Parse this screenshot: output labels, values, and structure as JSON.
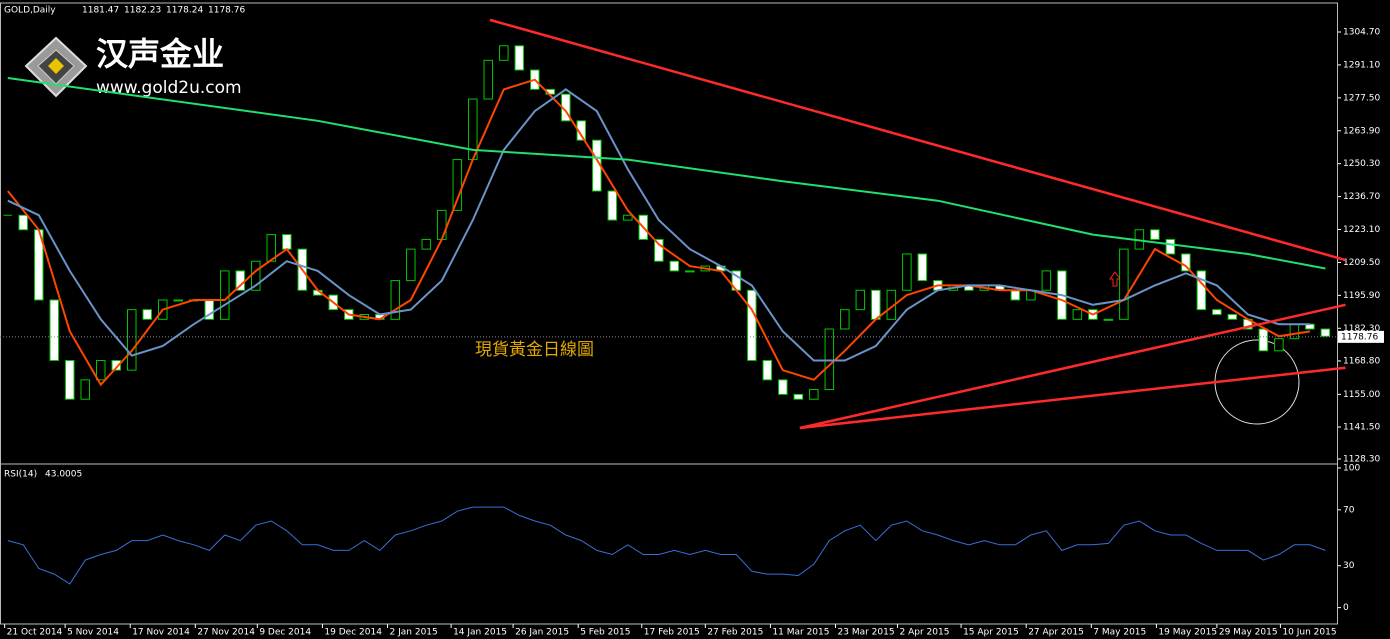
{
  "chart_data": [
    {
      "type": "candlestick",
      "title": "GOLD,Daily",
      "ohlc": [
        1181.47,
        1182.23,
        1178.24,
        1178.76
      ],
      "watermark": {
        "brand": "汉声金业",
        "site": "www.gold2u.com"
      },
      "annotation": "現貨黃金日線圖",
      "up_color": "#000000",
      "down_color": "#ffffff",
      "outline_color": "#00c800",
      "values": [
        1229,
        1223,
        1194,
        1169,
        1153,
        1161,
        1169,
        1165,
        1190,
        1186,
        1194,
        1194,
        1194,
        1186,
        1206,
        1198,
        1210,
        1221,
        1215,
        1198,
        1196,
        1190,
        1186,
        1188,
        1186,
        1202,
        1215,
        1219,
        1231,
        1252,
        1277,
        1293,
        1299,
        1289,
        1281,
        1279,
        1268,
        1260,
        1239,
        1227,
        1229,
        1219,
        1210,
        1206,
        1206,
        1208,
        1206,
        1198,
        1169,
        1161,
        1155,
        1153,
        1157,
        1182,
        1190,
        1198,
        1186,
        1198,
        1213,
        1202,
        1198,
        1200,
        1198,
        1200,
        1198,
        1194,
        1198,
        1206,
        1186,
        1190,
        1186,
        1186,
        1215,
        1223,
        1219,
        1213,
        1206,
        1190,
        1188,
        1186,
        1182,
        1173,
        1178,
        1184,
        1182,
        1179
      ],
      "series": [
        {
          "color": "#ff4500",
          "x": [
            0,
            2,
            4,
            6,
            8,
            10,
            12,
            14,
            16,
            18,
            20,
            22,
            24,
            26,
            28,
            30,
            32,
            34,
            36,
            38,
            40,
            42,
            44,
            46,
            48,
            50,
            52,
            54,
            56,
            58,
            60,
            62,
            64,
            66,
            68,
            70,
            72,
            74,
            76,
            78,
            80,
            82,
            84
          ],
          "values": [
            1239,
            1223,
            1181,
            1159,
            1173,
            1190,
            1194,
            1194,
            1206,
            1215,
            1198,
            1188,
            1186,
            1194,
            1219,
            1252,
            1281,
            1285,
            1272,
            1252,
            1231,
            1217,
            1208,
            1206,
            1190,
            1165,
            1161,
            1173,
            1186,
            1196,
            1200,
            1200,
            1198,
            1198,
            1194,
            1188,
            1194,
            1215,
            1208,
            1194,
            1186,
            1179,
            1181
          ]
        },
        {
          "color": "#6a93c8",
          "x": [
            0,
            2,
            4,
            6,
            8,
            10,
            12,
            14,
            16,
            18,
            20,
            22,
            24,
            26,
            28,
            30,
            32,
            34,
            36,
            38,
            40,
            42,
            44,
            46,
            48,
            50,
            52,
            54,
            56,
            58,
            60,
            62,
            64,
            66,
            68,
            70,
            72,
            74,
            76,
            78,
            80,
            82,
            84
          ],
          "values": [
            1235,
            1229,
            1206,
            1186,
            1171,
            1175,
            1184,
            1192,
            1200,
            1210,
            1206,
            1196,
            1188,
            1190,
            1202,
            1227,
            1256,
            1272,
            1281,
            1272,
            1248,
            1227,
            1215,
            1208,
            1200,
            1181,
            1169,
            1169,
            1175,
            1190,
            1198,
            1200,
            1200,
            1198,
            1196,
            1192,
            1194,
            1200,
            1205,
            1200,
            1188,
            1184,
            1184
          ]
        },
        {
          "color": "#20e070",
          "x": [
            0,
            20,
            30,
            40,
            50,
            60,
            70,
            80,
            85
          ],
          "values": [
            1285.7,
            1268,
            1256,
            1252,
            1243,
            1235,
            1221,
            1213,
            1207
          ]
        }
      ],
      "trendlines": [
        {
          "color": "#ff2a2a",
          "x": [
            31.1,
            86.3
          ],
          "y": [
            1309.7,
            1210.5
          ]
        },
        {
          "color": "#ff2a2a",
          "x": [
            51.1,
            86.3
          ],
          "y": [
            1141.1,
            1192.0
          ]
        },
        {
          "color": "#ff2a2a",
          "x": [
            51.1,
            86.3
          ],
          "y": [
            1141.1,
            1166.0
          ]
        }
      ],
      "xlim": [
        -0.5,
        85.75
      ],
      "ylim": [
        1127.06,
        1315.85
      ],
      "yticks": [
        {
          "value": 1128.3,
          "label": "1128.30"
        },
        {
          "value": 1141.5,
          "label": "1141.50"
        },
        {
          "value": 1155,
          "label": "1155.00"
        },
        {
          "value": 1168.8,
          "label": "1168.80"
        },
        {
          "value": 1182.3,
          "label": "1182.30"
        },
        {
          "value": 1195.9,
          "label": "1195.90"
        },
        {
          "value": 1209.5,
          "label": "1209.50"
        },
        {
          "value": 1223.1,
          "label": "1223.10"
        },
        {
          "value": 1236.7,
          "label": "1236.70"
        },
        {
          "value": 1250.3,
          "label": "1250.30"
        },
        {
          "value": 1263.9,
          "label": "1263.90"
        },
        {
          "value": 1277.5,
          "label": "1277.50"
        },
        {
          "value": 1291.1,
          "label": "1291.10"
        },
        {
          "value": 1304.7,
          "label": "1304.70"
        }
      ]
    },
    {
      "type": "line",
      "title": "RSI(14)",
      "last": 43.0005,
      "color": "#3a6fd8",
      "values": [
        48,
        45,
        28,
        24,
        17,
        34,
        38,
        41,
        48,
        48,
        52,
        48,
        45,
        41,
        52,
        48,
        59,
        62,
        55,
        45,
        45,
        41,
        41,
        48,
        41,
        52,
        55,
        59,
        62,
        69,
        72,
        72,
        72,
        66,
        62,
        59,
        52,
        48,
        41,
        38,
        45,
        38,
        38,
        41,
        38,
        41,
        38,
        38,
        26,
        24,
        24,
        23,
        31,
        48,
        55,
        59,
        48,
        59,
        62,
        55,
        52,
        48,
        45,
        48,
        45,
        45,
        52,
        55,
        41,
        45,
        45,
        46,
        59,
        62,
        55,
        52,
        52,
        46,
        41,
        41,
        41,
        34,
        38,
        45,
        45,
        41
      ],
      "xlim": [
        -0.5,
        85.75
      ],
      "ylim": [
        -10.3,
        101.4
      ],
      "yticks": [
        0,
        30,
        70,
        100
      ],
      "xticks": [
        {
          "value": -0.2,
          "label": "21 Oct 2014"
        },
        {
          "value": 3.7,
          "label": "5 Nov 2014"
        },
        {
          "value": 7.9,
          "label": "17 Nov 2014"
        },
        {
          "value": 12.1,
          "label": "27 Nov 2014"
        },
        {
          "value": 16.1,
          "label": "9 Dec 2014"
        },
        {
          "value": 20.3,
          "label": "19 Dec 2014"
        },
        {
          "value": 24.5,
          "label": "2 Jan 2015"
        },
        {
          "value": 28.6,
          "label": "14 Jan 2015"
        },
        {
          "value": 32.6,
          "label": "26 Jan 2015"
        },
        {
          "value": 36.8,
          "label": "5 Feb 2015"
        },
        {
          "value": 40.9,
          "label": "17 Feb 2015"
        },
        {
          "value": 45.0,
          "label": "27 Feb 2015"
        },
        {
          "value": 49.2,
          "label": "11 Mar 2015"
        },
        {
          "value": 53.4,
          "label": "23 Mar 2015"
        },
        {
          "value": 57.4,
          "label": "2 Apr 2015"
        },
        {
          "value": 61.5,
          "label": "15 Apr 2015"
        },
        {
          "value": 65.7,
          "label": "27 Apr 2015"
        },
        {
          "value": 69.9,
          "label": "7 May 2015"
        },
        {
          "value": 74.1,
          "label": "19 May 2015"
        },
        {
          "value": 78.0,
          "label": "29 May 2015"
        },
        {
          "value": 82.1,
          "label": "10 Jun 2015"
        }
      ]
    }
  ]
}
